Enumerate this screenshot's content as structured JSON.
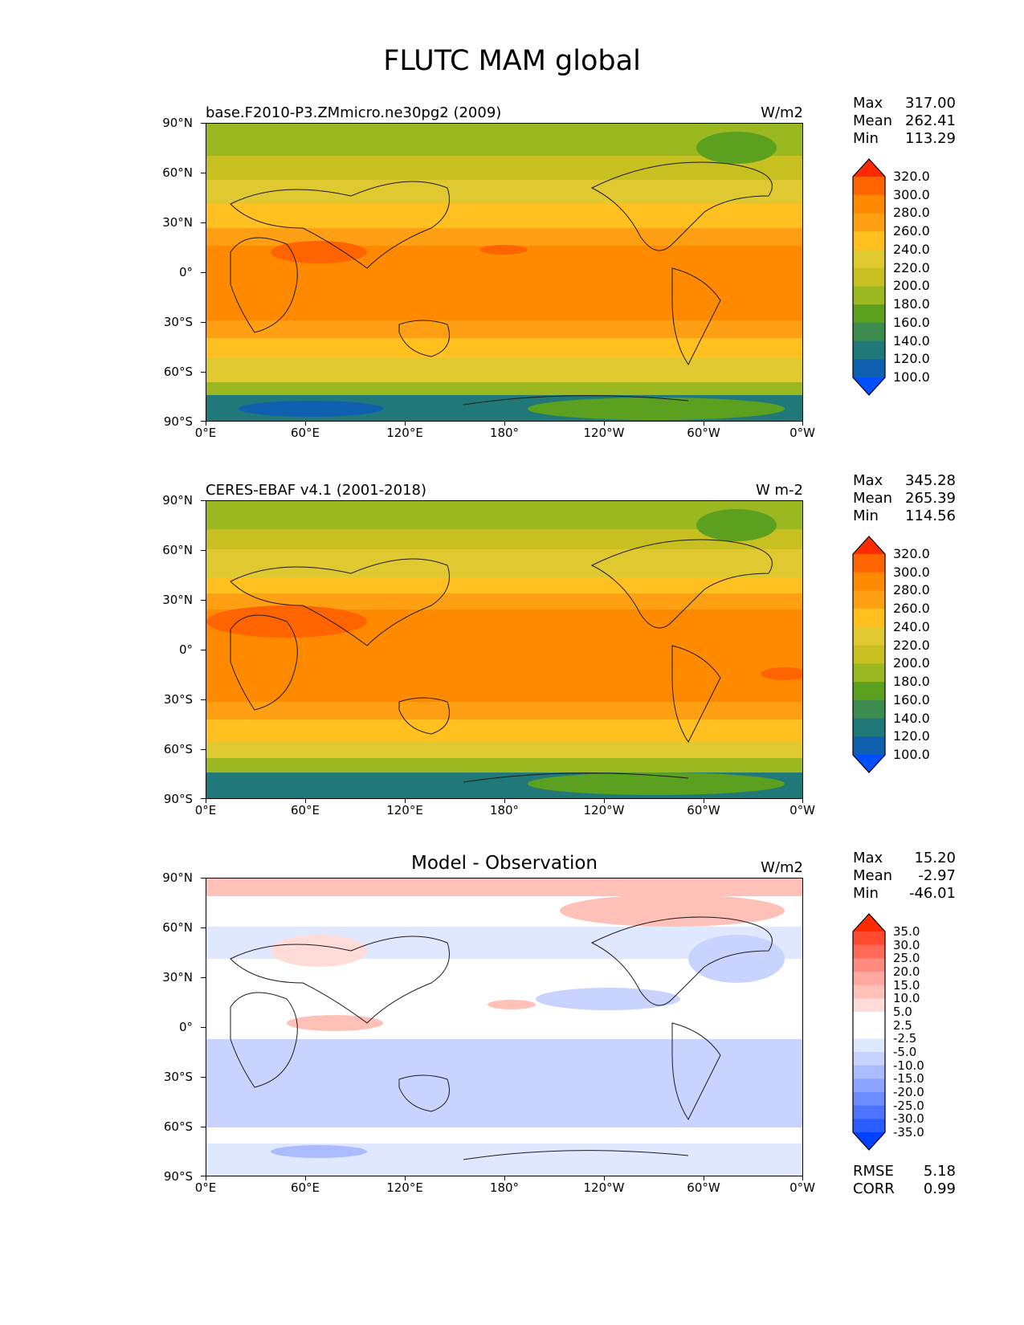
{
  "title": "FLUTC MAM global",
  "axes": {
    "lat_labels": [
      "90°N",
      "60°N",
      "30°N",
      "0°",
      "30°S",
      "60°S",
      "90°S"
    ],
    "lon_labels": [
      "0°E",
      "60°E",
      "120°E",
      "180°",
      "120°W",
      "60°W",
      "0°W"
    ]
  },
  "panels": [
    {
      "title": "base.F2010-P3.ZMmicro.ne30pg2 (2009)",
      "units": "W/m2",
      "stats": [
        {
          "label": "Max",
          "value": "317.00"
        },
        {
          "label": "Mean",
          "value": "262.41"
        },
        {
          "label": "Min",
          "value": "113.29"
        }
      ],
      "colorbar": {
        "labels": [
          "320.0",
          "300.0",
          "280.0",
          "260.0",
          "240.0",
          "220.0",
          "200.0",
          "180.0",
          "160.0",
          "140.0",
          "120.0",
          "100.0"
        ],
        "colors": [
          "#ff2a00",
          "#ff6400",
          "#ff8a00",
          "#ffa014",
          "#ffc020",
          "#e0c830",
          "#c8c020",
          "#9cb820",
          "#5ca020",
          "#3c8c50",
          "#207878",
          "#1060b0",
          "#0050ff"
        ]
      }
    },
    {
      "title": "CERES-EBAF v4.1 (2001-2018)",
      "units": "W m-2",
      "stats": [
        {
          "label": "Max",
          "value": "345.28"
        },
        {
          "label": "Mean",
          "value": "265.39"
        },
        {
          "label": "Min",
          "value": "114.56"
        }
      ],
      "colorbar": {
        "labels": [
          "320.0",
          "300.0",
          "280.0",
          "260.0",
          "240.0",
          "220.0",
          "200.0",
          "180.0",
          "160.0",
          "140.0",
          "120.0",
          "100.0"
        ],
        "colors": [
          "#ff2a00",
          "#ff6400",
          "#ff8a00",
          "#ffa014",
          "#ffc020",
          "#e0c830",
          "#c8c020",
          "#9cb820",
          "#5ca020",
          "#3c8c50",
          "#207878",
          "#1060b0",
          "#0050ff"
        ]
      }
    },
    {
      "title": "Model - Observation",
      "units": "W/m2",
      "stats": [
        {
          "label": "Max",
          "value": "15.20"
        },
        {
          "label": "Mean",
          "value": "-2.97"
        },
        {
          "label": "Min",
          "value": "-46.01"
        }
      ],
      "colorbar": {
        "labels": [
          "35.0",
          "30.0",
          "25.0",
          "20.0",
          "15.0",
          "10.0",
          "5.0",
          "2.5",
          "-2.5",
          "-5.0",
          "-10.0",
          "-15.0",
          "-20.0",
          "-25.0",
          "-30.0",
          "-35.0"
        ],
        "colors": [
          "#ff2a00",
          "#ff4a30",
          "#ff6a58",
          "#ff8a80",
          "#ffa8a0",
          "#ffc0b8",
          "#ffdcd8",
          "#ffffff",
          "#ffffff",
          "#e0e8ff",
          "#c8d4ff",
          "#aabcff",
          "#8ca4ff",
          "#6c8cff",
          "#4c74ff",
          "#2a5cff",
          "#0040ff"
        ]
      },
      "extra": [
        {
          "label": "RMSE",
          "value": "5.18"
        },
        {
          "label": "CORR",
          "value": "0.99"
        }
      ]
    }
  ]
}
